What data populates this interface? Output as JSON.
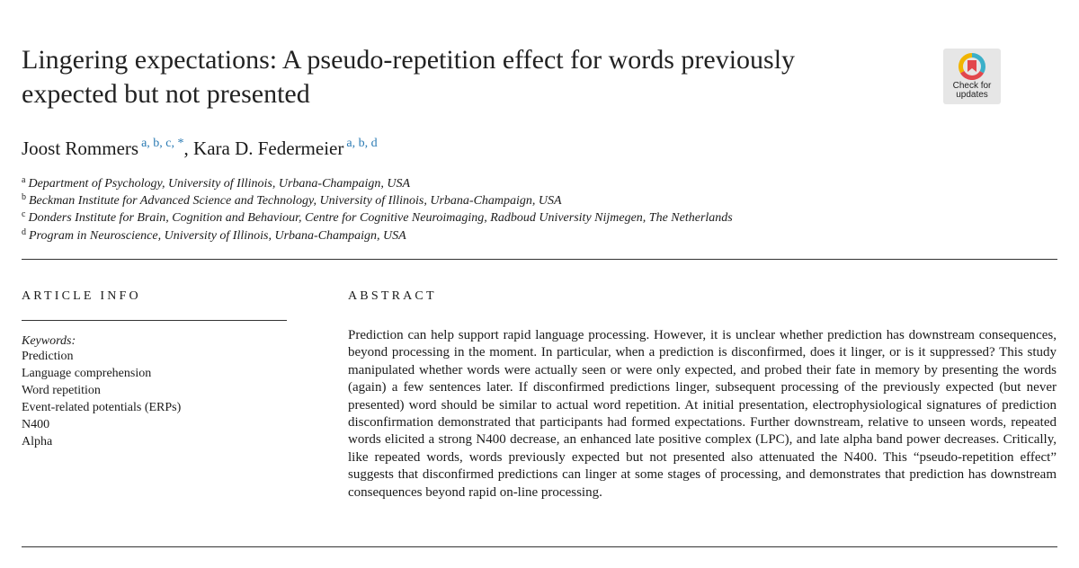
{
  "title_line1": "Lingering expectations: A pseudo-repetition effect for words previously",
  "title_line2": "expected but not presented",
  "badge": {
    "line1": "Check for",
    "line2": "updates",
    "icon": "crossmark-icon"
  },
  "authors": [
    {
      "name": "Joost Rommers",
      "affils": "a, b, c, *"
    },
    {
      "name": "Kara D. Federmeier",
      "affils": "a, b, d"
    }
  ],
  "author_separator": ",",
  "affiliations": [
    {
      "mark": "a",
      "text": "Department of Psychology, University of Illinois, Urbana-Champaign, USA"
    },
    {
      "mark": "b",
      "text": "Beckman Institute for Advanced Science and Technology, University of Illinois, Urbana-Champaign, USA"
    },
    {
      "mark": "c",
      "text": "Donders Institute for Brain, Cognition and Behaviour, Centre for Cognitive Neuroimaging, Radboud University Nijmegen, The Netherlands"
    },
    {
      "mark": "d",
      "text": "Program in Neuroscience, University of Illinois, Urbana-Champaign, USA"
    }
  ],
  "article_info_heading": "ARTICLE INFO",
  "abstract_heading": "ABSTRACT",
  "keywords_label": "Keywords:",
  "keywords": [
    "Prediction",
    "Language comprehension",
    "Word repetition",
    "Event-related potentials (ERPs)",
    "N400",
    "Alpha"
  ],
  "abstract_text": "Prediction can help support rapid language processing. However, it is unclear whether prediction has downstream consequences, beyond processing in the moment. In particular, when a prediction is disconfirmed, does it linger, or is it suppressed? This study manipulated whether words were actually seen or were only expected, and probed their fate in memory by presenting the words (again) a few sentences later. If disconfirmed predictions linger, subsequent processing of the previously expected (but never presented) word should be similar to actual word repetition. At initial presentation, electrophysiological signatures of prediction disconfirmation demonstrated that participants had formed expectations. Further downstream, relative to unseen words, repeated words elicited a strong N400 decrease, an enhanced late positive complex (LPC), and late alpha band power decreases. Critically, like repeated words, words previously expected but not presented also attenuated the N400. This “pseudo-repetition effect” suggests that disconfirmed predictions can linger at some stages of processing, and demonstrates that prediction has downstream consequences beyond rapid on-line processing.",
  "colors": {
    "affil_mark": "#2a7ab3",
    "text": "#1a1a1a"
  }
}
